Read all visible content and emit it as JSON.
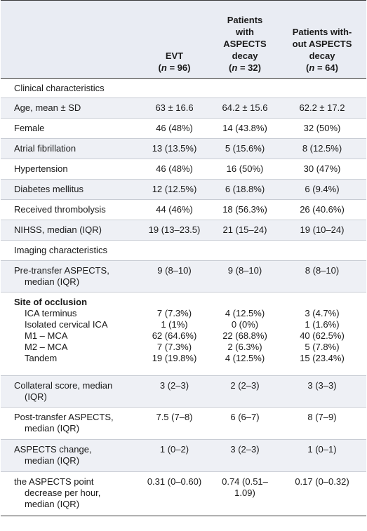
{
  "header": {
    "col1": {
      "line1": "EVT",
      "n_prefix": "(",
      "n_italic": "n",
      "n_suffix": " = 96)"
    },
    "col2": {
      "line1": "Patients",
      "line2": "with",
      "line3": "ASPECTS",
      "line4": "decay",
      "n_prefix": "(",
      "n_italic": "n",
      "n_suffix": " = 32)"
    },
    "col3": {
      "line1": "Patients with-",
      "line2": "out ASPECTS",
      "line3": "decay",
      "n_prefix": "(",
      "n_italic": "n",
      "n_suffix": " = 64)"
    }
  },
  "sections": {
    "clinical": "Clinical characteristics",
    "imaging": "Imaging characteristics"
  },
  "rows": [
    {
      "label": "Age, mean ± SD",
      "v1": "63 ± 16.6",
      "v2": "64.2 ± 15.6",
      "v3": "62.2 ± 17.2"
    },
    {
      "label": "Female",
      "v1": "46 (48%)",
      "v2": "14 (43.8%)",
      "v3": "32 (50%)"
    },
    {
      "label": "Atrial fibrillation",
      "v1": "13 (13.5%)",
      "v2": "5 (15.6%)",
      "v3": "8 (12.5%)"
    },
    {
      "label": "Hypertension",
      "v1": "46 (48%)",
      "v2": "16 (50%)",
      "v3": "30 (47%)"
    },
    {
      "label": "Diabetes mellitus",
      "v1": "12 (12.5%)",
      "v2": "6 (18.8%)",
      "v3": "6 (9.4%)"
    },
    {
      "label": "Received thrombolysis",
      "v1": "44 (46%)",
      "v2": "18 (56.3%)",
      "v3": "26 (40.6%)"
    },
    {
      "label": "NIHSS, median (IQR)",
      "v1": "19 (13–23.5)",
      "v2": "21 (15–24)",
      "v3": "19 (10–24)"
    }
  ],
  "imaging_rows": {
    "pre": {
      "label1": "Pre-transfer ASPECTS,",
      "label2": "median (IQR)",
      "v1": "9 (8–10)",
      "v2": "9 (8–10)",
      "v3": "8 (8–10)"
    },
    "site": {
      "title": "Site of occlusion",
      "items": [
        {
          "label": "ICA terminus",
          "v1": "7 (7.3%)",
          "v2": "4 (12.5%)",
          "v3": "3 (4.7%)"
        },
        {
          "label": "Isolated cervical ICA",
          "v1": "1 (1%)",
          "v2": "0 (0%)",
          "v3": "1 (1.6%)"
        },
        {
          "label": "M1 – MCA",
          "v1": "62 (64.6%)",
          "v2": "22 (68.8%)",
          "v3": "40 (62.5%)"
        },
        {
          "label": "M2 – MCA",
          "v1": "7 (7.3%)",
          "v2": "2 (6.3%)",
          "v3": "5 (7.8%)"
        },
        {
          "label": "Tandem",
          "v1": "19 (19.8%)",
          "v2": "4 (12.5%)",
          "v3": "15 (23.4%)"
        }
      ]
    },
    "collateral": {
      "label1": "Collateral score, median",
      "label2": "(IQR)",
      "v1": "3 (2–3)",
      "v2": "2 (2–3)",
      "v3": "3 (3–3)"
    },
    "post": {
      "label1": "Post-transfer ASPECTS,",
      "label2": "median (IQR)",
      "v1": "7.5 (7–8)",
      "v2": "6 (6–7)",
      "v3": "8 (7–9)"
    },
    "change": {
      "label1": "ASPECTS change,",
      "label2": "median (IQR)",
      "v1": "1 (0–2)",
      "v2": "3 (2–3)",
      "v3": "1 (0–1)"
    },
    "rate": {
      "label1": "the ASPECTS point",
      "label2": "decrease per hour,",
      "label3": "median (IQR)",
      "v1": "0.31 (0–0.60)",
      "v2a": "0.74 (0.51–",
      "v2b": "1.09)",
      "v3": "0.17 (0–0.32)"
    }
  }
}
